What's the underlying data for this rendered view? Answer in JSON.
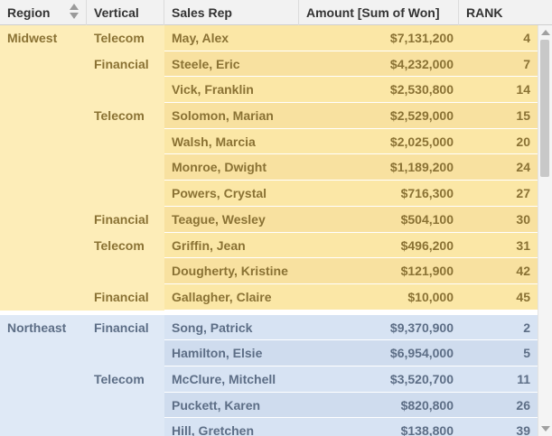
{
  "header": {
    "region": "Region",
    "vertical": "Vertical",
    "sales_rep": "Sales Rep",
    "amount": "Amount [Sum of Won]",
    "rank": "RANK"
  },
  "colors": {
    "midwest_bg": "#fdedb8",
    "midwest_text": "#8a7234",
    "northeast_bg": "#dfe9f6",
    "northeast_text": "#5d6e86"
  },
  "groups": [
    {
      "region": "Midwest",
      "rows": [
        {
          "vertical": "Telecom",
          "rep": "May, Alex",
          "amount": "$7,131,200",
          "rank": "4"
        },
        {
          "vertical": "Financial",
          "rep": "Steele, Eric",
          "amount": "$4,232,000",
          "rank": "7"
        },
        {
          "vertical": "",
          "rep": "Vick, Franklin",
          "amount": "$2,530,800",
          "rank": "14"
        },
        {
          "vertical": "Telecom",
          "rep": "Solomon, Marian",
          "amount": "$2,529,000",
          "rank": "15"
        },
        {
          "vertical": "",
          "rep": "Walsh, Marcia",
          "amount": "$2,025,000",
          "rank": "20"
        },
        {
          "vertical": "",
          "rep": "Monroe, Dwight",
          "amount": "$1,189,200",
          "rank": "24"
        },
        {
          "vertical": "",
          "rep": "Powers, Crystal",
          "amount": "$716,300",
          "rank": "27"
        },
        {
          "vertical": "Financial",
          "rep": "Teague, Wesley",
          "amount": "$504,100",
          "rank": "30"
        },
        {
          "vertical": "Telecom",
          "rep": "Griffin, Jean",
          "amount": "$496,200",
          "rank": "31"
        },
        {
          "vertical": "",
          "rep": "Dougherty, Kristine",
          "amount": "$121,900",
          "rank": "42"
        },
        {
          "vertical": "Financial",
          "rep": "Gallagher, Claire",
          "amount": "$10,000",
          "rank": "45"
        }
      ]
    },
    {
      "region": "Northeast",
      "rows": [
        {
          "vertical": "Financial",
          "rep": "Song, Patrick",
          "amount": "$9,370,900",
          "rank": "2"
        },
        {
          "vertical": "",
          "rep": "Hamilton, Elsie",
          "amount": "$6,954,000",
          "rank": "5"
        },
        {
          "vertical": "Telecom",
          "rep": "McClure, Mitchell",
          "amount": "$3,520,700",
          "rank": "11"
        },
        {
          "vertical": "",
          "rep": "Puckett, Karen",
          "amount": "$820,800",
          "rank": "26"
        },
        {
          "vertical": "",
          "rep": "Hill, Gretchen",
          "amount": "$138,800",
          "rank": "39"
        }
      ]
    }
  ]
}
